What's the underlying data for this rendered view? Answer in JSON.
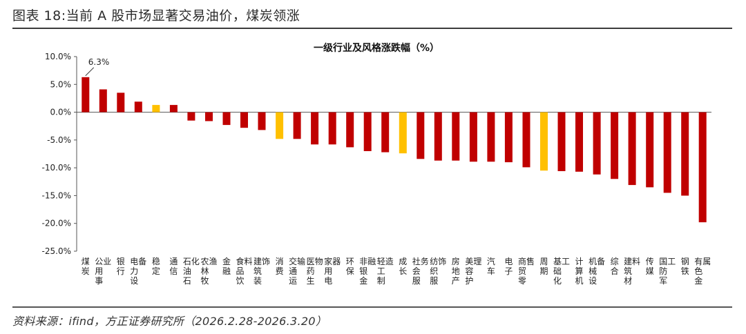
{
  "figure": {
    "title": "图表 18:当前 A 股市场显著交易油价，煤炭领涨",
    "source": "资料来源：ifind，方正证券研究所（2026.2.28-2026.3.20）"
  },
  "chart_data": {
    "type": "bar",
    "title": "一级行业及风格涨跌幅（%）",
    "xlabel": "",
    "ylabel": "",
    "ylim": [
      -25,
      10
    ],
    "yticks": [
      10,
      5,
      0,
      -5,
      -10,
      -15,
      -20,
      -25
    ],
    "ytick_labels": [
      "10.0%",
      "5.0%",
      "0.0%",
      "-5.0%",
      "-10.0%",
      "-15.0%",
      "-20.0%",
      "-25.0%"
    ],
    "categories": [
      "煤炭",
      "公用事业",
      "银行",
      "电力设备",
      "稳定",
      "通信",
      "石油石化",
      "农林牧渔",
      "金融",
      "食品饮料",
      "建筑装饰",
      "消费",
      "交通运输",
      "医药生物",
      "家用电器",
      "环保",
      "非银金融",
      "轻工制造",
      "成长",
      "社会服务",
      "纺织服饰",
      "房地产",
      "美容护理",
      "汽车",
      "电子",
      "商贸零售",
      "周期",
      "基础化工",
      "计算机",
      "机械设备",
      "综合",
      "建筑材料",
      "传媒",
      "国防军工",
      "钢铁",
      "有色金属"
    ],
    "values": [
      6.3,
      4.1,
      3.5,
      1.9,
      1.3,
      1.3,
      -1.5,
      -1.6,
      -2.3,
      -2.8,
      -3.2,
      -4.8,
      -4.8,
      -5.8,
      -5.8,
      -6.3,
      -7.0,
      -7.2,
      -7.4,
      -8.4,
      -8.7,
      -8.7,
      -8.9,
      -8.9,
      -9.0,
      -9.9,
      -10.5,
      -10.6,
      -10.7,
      -11.2,
      -12.0,
      -13.1,
      -13.5,
      -14.5,
      -15.0,
      -19.8
    ],
    "style_categories": [
      "稳定",
      "消费",
      "成长",
      "周期"
    ],
    "colors": {
      "industry": "#C00000",
      "style": "#FFC000"
    },
    "annotation": {
      "category": "煤炭",
      "text": "6.3%"
    }
  }
}
